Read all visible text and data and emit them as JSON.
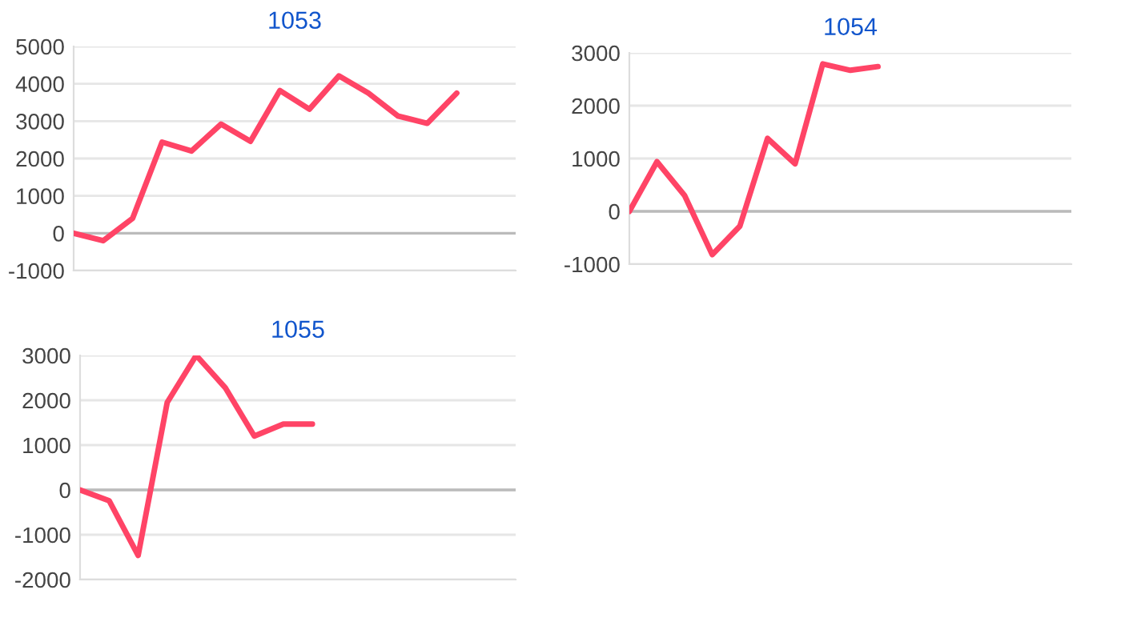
{
  "chart_data": [
    {
      "type": "line",
      "title": "1053",
      "categories": [
        null,
        null,
        null,
        null,
        null,
        null,
        null,
        null,
        null,
        null,
        null,
        null,
        null,
        null,
        null,
        null
      ],
      "series": [
        {
          "color": "#ff4466",
          "values": [
            0,
            -200,
            400,
            2440,
            2200,
            2920,
            2460,
            3820,
            3320,
            4210,
            3750,
            3140,
            2940,
            3750,
            null,
            null
          ]
        }
      ],
      "ylim": [
        -1000,
        5000
      ],
      "yticks": [
        -1000,
        0,
        1000,
        2000,
        3000,
        4000,
        5000
      ],
      "grid": "y",
      "tick_labels": "y",
      "ref_lines": [
        {
          "axis": "y",
          "value": 0,
          "color": "#bbbbbb"
        }
      ]
    },
    {
      "type": "line",
      "title": "1054",
      "categories": [
        null,
        null,
        null,
        null,
        null,
        null,
        null,
        null,
        null,
        null,
        null,
        null,
        null,
        null,
        null,
        null,
        null
      ],
      "series": [
        {
          "color": "#ff4466",
          "values": [
            0,
            940,
            300,
            -820,
            -280,
            1380,
            900,
            2790,
            2670,
            2740,
            null,
            null,
            null,
            null,
            null,
            null,
            null
          ]
        }
      ],
      "ylim": [
        -1000,
        3000
      ],
      "yticks": [
        -1000,
        0,
        1000,
        2000,
        3000
      ],
      "grid": "y",
      "tick_labels": "y",
      "ref_lines": [
        {
          "axis": "y",
          "value": 0,
          "color": "#bbbbbb"
        }
      ]
    },
    {
      "type": "line",
      "title": "1055",
      "categories": [
        null,
        null,
        null,
        null,
        null,
        null,
        null,
        null,
        null,
        null,
        null,
        null,
        null,
        null,
        null,
        null
      ],
      "series": [
        {
          "color": "#ff4466",
          "values": [
            0,
            -240,
            -1460,
            1950,
            3000,
            2280,
            1200,
            1470,
            1470,
            null,
            null,
            null,
            null,
            null,
            null,
            null
          ]
        }
      ],
      "ylim": [
        -2000,
        3000
      ],
      "yticks": [
        -2000,
        -1000,
        0,
        1000,
        2000,
        3000
      ],
      "grid": "y",
      "tick_labels": "y",
      "ref_lines": [
        {
          "axis": "y",
          "value": 0,
          "color": "#bbbbbb"
        }
      ]
    }
  ]
}
